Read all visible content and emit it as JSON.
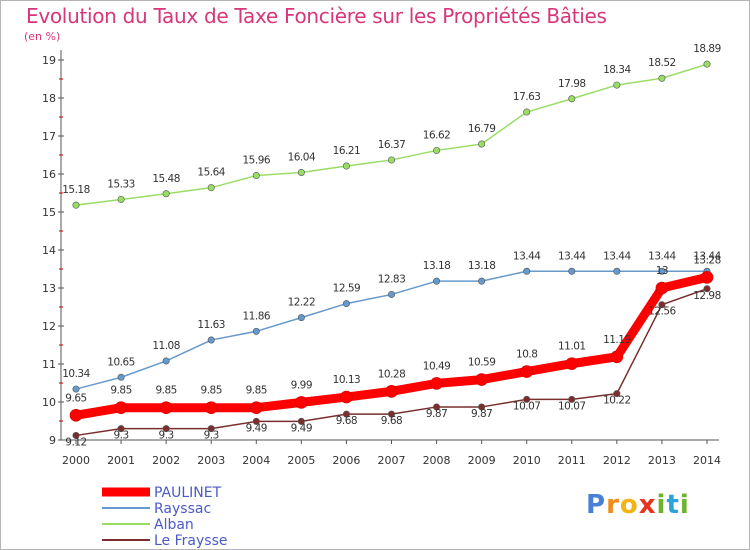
{
  "header": {
    "title": "Evolution du Taux de Taxe Foncière sur les Propriétés Bâties",
    "unit": "(en %)"
  },
  "logo": {
    "letters": [
      "P",
      "r",
      "o",
      "x",
      "i",
      "t",
      "i"
    ],
    "colors": [
      "#4a7fd6",
      "#f08b1c",
      "#f2b316",
      "#e9331f",
      "#6db42e",
      "#2ea3d8",
      "#6db42e"
    ]
  },
  "chart_data": {
    "type": "line",
    "x": [
      2000,
      2001,
      2002,
      2003,
      2004,
      2005,
      2006,
      2007,
      2008,
      2009,
      2010,
      2011,
      2012,
      2013,
      2014
    ],
    "ylim": [
      9,
      19
    ],
    "yticks": [
      9,
      10,
      11,
      12,
      13,
      14,
      15,
      16,
      17,
      18,
      19
    ],
    "grid": false,
    "legend_position": "bottom-left",
    "series": [
      {
        "name": "PAULINET",
        "color": "#ff0000",
        "values": [
          9.65,
          9.85,
          9.85,
          9.85,
          9.85,
          9.99,
          10.13,
          10.28,
          10.49,
          10.59,
          10.8,
          11.01,
          11.19,
          13,
          13.28
        ],
        "labels": [
          "9.65",
          "9.85",
          "9.85",
          "9.85",
          "9.85",
          "9.99",
          "10.13",
          "10.28",
          "10.49",
          "10.59",
          "10.8",
          "11.01",
          "11.19",
          "13",
          "13.28"
        ]
      },
      {
        "name": "Rayssac",
        "color": "#6699cc",
        "values": [
          10.34,
          10.65,
          11.08,
          11.63,
          11.86,
          12.22,
          12.59,
          12.83,
          13.18,
          13.18,
          13.44,
          13.44,
          13.44,
          13.44,
          13.44
        ],
        "labels": [
          "10.34",
          "10.65",
          "11.08",
          "11.63",
          "11.86",
          "12.22",
          "12.59",
          "12.83",
          "13.18",
          "13.18",
          "13.44",
          "13.44",
          "13.44",
          "13.44",
          "13.44"
        ]
      },
      {
        "name": "Alban",
        "color": "#99dd66",
        "values": [
          15.18,
          15.33,
          15.48,
          15.64,
          15.96,
          16.04,
          16.21,
          16.37,
          16.62,
          16.79,
          17.63,
          17.98,
          18.34,
          18.52,
          18.89
        ],
        "labels": [
          "15.18",
          "15.33",
          "15.48",
          "15.64",
          "15.96",
          "16.04",
          "16.21",
          "16.37",
          "16.62",
          "16.79",
          "17.63",
          "17.98",
          "18.34",
          "18.52",
          "18.89"
        ]
      },
      {
        "name": "Le Fraysse",
        "color": "#7a2e2e",
        "values": [
          9.12,
          9.3,
          9.3,
          9.3,
          9.49,
          9.49,
          9.68,
          9.68,
          9.87,
          9.87,
          10.07,
          10.07,
          10.22,
          12.56,
          12.98
        ],
        "labels": [
          "9.12",
          "9.3",
          "9.3",
          "9.3",
          "9.49",
          "9.49",
          "9.68",
          "9.68",
          "9.87",
          "9.87",
          "10.07",
          "10.07",
          "10.22",
          "12.56",
          "12.98"
        ]
      }
    ]
  }
}
